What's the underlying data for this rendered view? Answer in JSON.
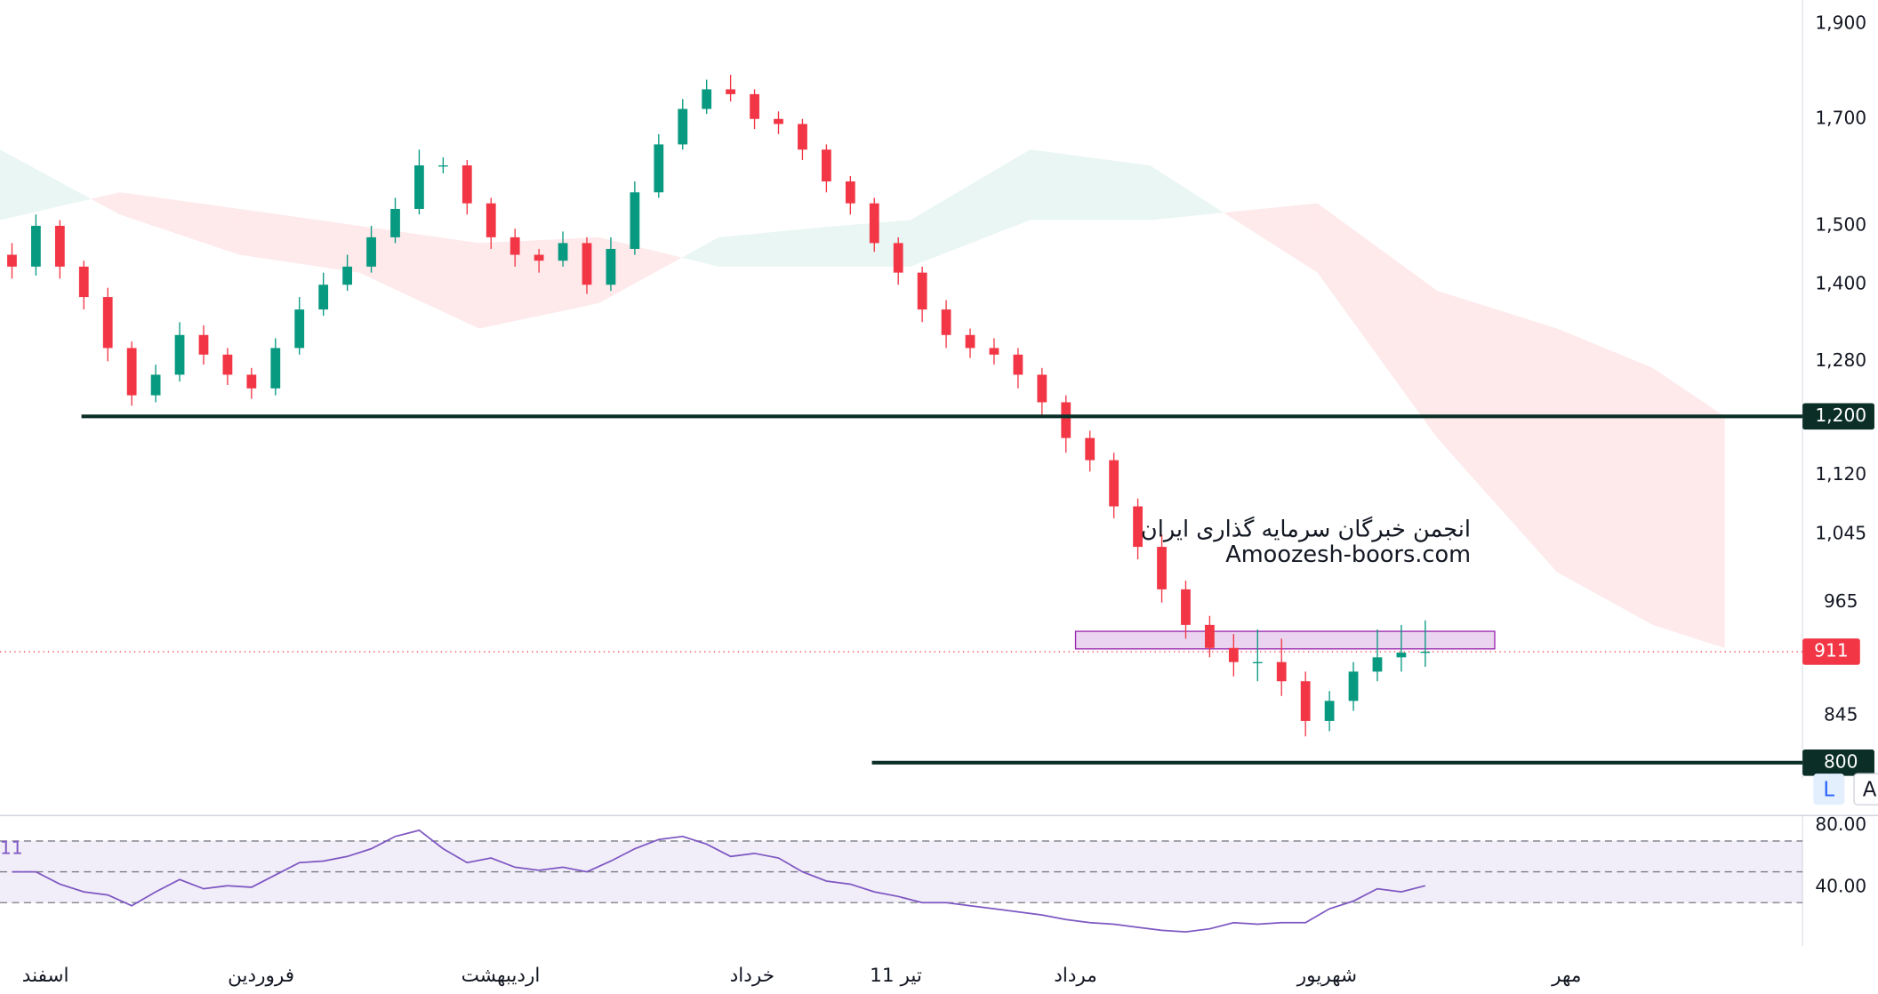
{
  "chart_data": {
    "type": "candlestick",
    "log_scale": true,
    "ylim": [
      753,
      1954
    ],
    "yticks": [
      {
        "value": 1900,
        "label": "1,900"
      },
      {
        "value": 1700,
        "label": "1,700"
      },
      {
        "value": 1500,
        "label": "1,500"
      },
      {
        "value": 1400,
        "label": "1,400"
      },
      {
        "value": 1280,
        "label": "1,280"
      },
      {
        "value": 1120,
        "label": "1,120"
      },
      {
        "value": 1045,
        "label": "1,045"
      },
      965,
      845
    ],
    "up_color": "#089981",
    "down_color": "#f23645",
    "candles": [
      [
        1450,
        1470,
        1410,
        1430
      ],
      [
        1430,
        1520,
        1415,
        1500
      ],
      [
        1500,
        1510,
        1410,
        1430
      ],
      [
        1430,
        1440,
        1360,
        1380
      ],
      [
        1380,
        1395,
        1280,
        1300
      ],
      [
        1300,
        1310,
        1215,
        1230
      ],
      [
        1230,
        1275,
        1220,
        1260
      ],
      [
        1260,
        1340,
        1250,
        1320
      ],
      [
        1320,
        1335,
        1275,
        1290
      ],
      [
        1290,
        1300,
        1245,
        1260
      ],
      [
        1260,
        1270,
        1225,
        1240
      ],
      [
        1240,
        1315,
        1230,
        1300
      ],
      [
        1300,
        1380,
        1290,
        1360
      ],
      [
        1360,
        1420,
        1350,
        1400
      ],
      [
        1400,
        1450,
        1390,
        1430
      ],
      [
        1430,
        1500,
        1420,
        1480
      ],
      [
        1480,
        1550,
        1470,
        1530
      ],
      [
        1530,
        1640,
        1520,
        1610
      ],
      [
        1610,
        1625,
        1595,
        1610
      ],
      [
        1610,
        1620,
        1520,
        1540
      ],
      [
        1540,
        1550,
        1460,
        1480
      ],
      [
        1480,
        1495,
        1430,
        1450
      ],
      [
        1450,
        1460,
        1420,
        1440
      ],
      [
        1440,
        1490,
        1430,
        1470
      ],
      [
        1470,
        1480,
        1385,
        1400
      ],
      [
        1400,
        1480,
        1390,
        1460
      ],
      [
        1460,
        1580,
        1450,
        1560
      ],
      [
        1560,
        1670,
        1550,
        1650
      ],
      [
        1650,
        1740,
        1640,
        1720
      ],
      [
        1720,
        1780,
        1710,
        1760
      ],
      [
        1760,
        1790,
        1735,
        1750
      ],
      [
        1750,
        1760,
        1680,
        1700
      ],
      [
        1700,
        1715,
        1670,
        1690
      ],
      [
        1690,
        1700,
        1620,
        1640
      ],
      [
        1640,
        1650,
        1560,
        1580
      ],
      [
        1580,
        1590,
        1520,
        1540
      ],
      [
        1540,
        1550,
        1455,
        1470
      ],
      [
        1470,
        1480,
        1400,
        1420
      ],
      [
        1420,
        1430,
        1340,
        1360
      ],
      [
        1360,
        1375,
        1300,
        1320
      ],
      [
        1320,
        1330,
        1285,
        1300
      ],
      [
        1300,
        1315,
        1275,
        1290
      ],
      [
        1290,
        1300,
        1240,
        1260
      ],
      [
        1260,
        1270,
        1200,
        1220
      ],
      [
        1220,
        1230,
        1150,
        1170
      ],
      [
        1170,
        1180,
        1125,
        1140
      ],
      [
        1140,
        1150,
        1065,
        1080
      ],
      [
        1080,
        1090,
        1015,
        1030
      ],
      [
        1030,
        1045,
        965,
        980
      ],
      [
        980,
        990,
        925,
        940
      ],
      [
        940,
        950,
        905,
        915
      ],
      [
        915,
        930,
        885,
        900
      ],
      [
        900,
        935,
        880,
        900
      ],
      [
        900,
        925,
        865,
        880
      ],
      [
        880,
        890,
        825,
        840
      ],
      [
        840,
        870,
        830,
        860
      ],
      [
        860,
        900,
        850,
        890
      ],
      [
        890,
        935,
        880,
        905
      ],
      [
        905,
        940,
        890,
        910
      ],
      [
        910,
        945,
        895,
        911
      ]
    ],
    "cloud": {
      "x": [
        -0.5,
        4.5,
        9.5,
        14.5,
        19.5,
        24.5,
        29.5,
        34.5,
        37.5,
        42.5,
        47.5,
        54.5,
        59.5,
        64.5,
        68.5,
        71.5
      ],
      "span_a": [
        1640,
        1520,
        1450,
        1420,
        1330,
        1370,
        1480,
        1500,
        1510,
        1640,
        1610,
        1420,
        1170,
        1000,
        940,
        915
      ],
      "span_b": [
        1510,
        1560,
        1530,
        1500,
        1470,
        1480,
        1430,
        1430,
        1430,
        1510,
        1510,
        1540,
        1390,
        1330,
        1270,
        1200
      ],
      "up_color": "rgba(8,153,129,0.09)",
      "down_color": "rgba(242,54,69,0.11)"
    },
    "hlines": [
      {
        "value": 1200,
        "label": "1,200",
        "start": 2.9
      },
      {
        "value": 800,
        "label": "800",
        "start": 35.9
      }
    ],
    "hline_color": "#0b2e26",
    "last_price": 911,
    "zone": {
      "low": 914,
      "high": 933,
      "x": [
        44.4,
        61.9
      ],
      "color": "#9c27b0"
    },
    "watermark": [
      "انجمن خبرگان سرمایه گذاری ایران",
      "Amoozesh-boors.com"
    ],
    "xlabels": [
      {
        "value": 1.4,
        "label": "اسفند"
      },
      {
        "value": 10.4,
        "label": "فروردین"
      },
      {
        "value": 20.4,
        "label": "اردیبهشت"
      },
      {
        "value": 30.9,
        "label": "خرداد"
      },
      {
        "value": 36.9,
        "label": "11 تیر"
      },
      {
        "value": 44.4,
        "label": "مرداد"
      },
      {
        "value": 54.9,
        "label": "شهریور"
      },
      {
        "value": 64.9,
        "label": "مهر"
      }
    ],
    "rsi": {
      "label": "11",
      "color": "#7e57c2",
      "ylim": [
        8,
        85
      ],
      "yticks": [
        {
          "value": 80,
          "label": "80.00"
        },
        {
          "value": 40,
          "label": "40.00"
        }
      ],
      "bands": [
        30,
        50,
        70
      ],
      "values": [
        50,
        50,
        42,
        37,
        35,
        28,
        37,
        45,
        39,
        41,
        40,
        48,
        56,
        57,
        60,
        65,
        73,
        77,
        65,
        56,
        59,
        53,
        51,
        53,
        50,
        57,
        65,
        71,
        73,
        68,
        60,
        62,
        59,
        50,
        44,
        42,
        37,
        34,
        30,
        30,
        28,
        26,
        24,
        22,
        19,
        17,
        16,
        14,
        12,
        11,
        13,
        17,
        16,
        17,
        17,
        26,
        31,
        39,
        37,
        41
      ]
    },
    "buttons": [
      "L",
      "A"
    ]
  }
}
